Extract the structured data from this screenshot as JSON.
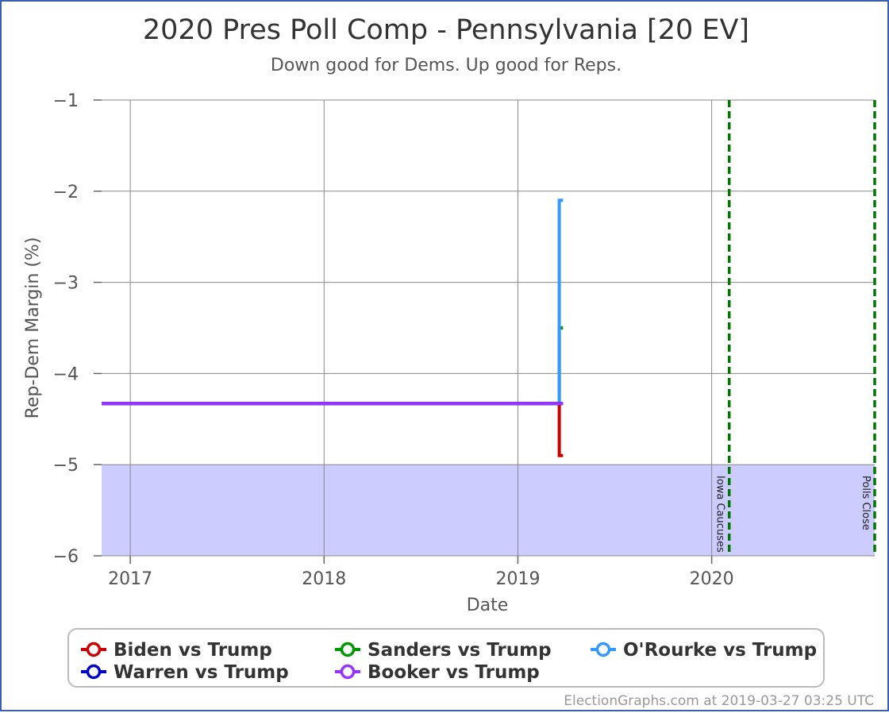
{
  "chart_data": {
    "type": "line",
    "title": "2020 Pres Poll Comp - Pennsylvania [20 EV]",
    "subtitle": "Down good for Dems. Up good for Reps.",
    "xlabel": "Date",
    "ylabel": "Rep-Dem Margin (%)",
    "xlim": [
      "2016-11-08",
      "2020-11-03"
    ],
    "ylim": [
      -6,
      -1
    ],
    "x_ticks": [
      {
        "date": "2017-01-01",
        "label": "2017"
      },
      {
        "date": "2018-01-01",
        "label": "2018"
      },
      {
        "date": "2019-01-01",
        "label": "2019"
      },
      {
        "date": "2020-01-01",
        "label": "2020"
      }
    ],
    "y_ticks": [
      {
        "value": -1,
        "label": "−1"
      },
      {
        "value": -2,
        "label": "−2"
      },
      {
        "value": -3,
        "label": "−3"
      },
      {
        "value": -4,
        "label": "−4"
      },
      {
        "value": -5,
        "label": "−5"
      },
      {
        "value": -6,
        "label": "−6"
      }
    ],
    "grid": true,
    "shaded_band": {
      "y_from": -6,
      "y_to": -5,
      "color": "#ccccff"
    },
    "events": [
      {
        "date": "2020-02-03",
        "label": "Iowa Caucuses",
        "color": "#007700"
      },
      {
        "date": "2020-11-03",
        "label": "Polls Close",
        "color": "#007700"
      }
    ],
    "series": [
      {
        "name": "Biden vs Trump",
        "color": "#cc0000",
        "points": [
          {
            "x": "2016-11-08",
            "y": -4.33
          },
          {
            "x": "2019-03-20",
            "y": -4.33
          },
          {
            "x": "2019-03-20",
            "y": -4.9
          },
          {
            "x": "2019-03-27",
            "y": -4.9
          }
        ]
      },
      {
        "name": "Sanders vs Trump",
        "color": "#009900",
        "points": [
          {
            "x": "2016-11-08",
            "y": -4.33
          },
          {
            "x": "2019-03-20",
            "y": -4.33
          },
          {
            "x": "2019-03-20",
            "y": -3.5
          },
          {
            "x": "2019-03-27",
            "y": -3.5
          }
        ]
      },
      {
        "name": "O'Rourke vs Trump",
        "color": "#3399ff",
        "points": [
          {
            "x": "2016-11-08",
            "y": -4.33
          },
          {
            "x": "2019-03-20",
            "y": -4.33
          },
          {
            "x": "2019-03-20",
            "y": -2.1
          },
          {
            "x": "2019-03-27",
            "y": -2.1
          }
        ]
      },
      {
        "name": "Warren vs Trump",
        "color": "#0000cc",
        "points": [
          {
            "x": "2016-11-08",
            "y": -4.33
          },
          {
            "x": "2019-03-27",
            "y": -4.33
          }
        ]
      },
      {
        "name": "Booker vs Trump",
        "color": "#9933ff",
        "points": [
          {
            "x": "2016-11-08",
            "y": -4.33
          },
          {
            "x": "2019-03-27",
            "y": -4.33
          }
        ]
      }
    ],
    "legend": {
      "placement": "bottom",
      "items": [
        {
          "name": "Biden vs Trump",
          "color": "#cc0000"
        },
        {
          "name": "Sanders vs Trump",
          "color": "#009900"
        },
        {
          "name": "O'Rourke vs Trump",
          "color": "#3399ff"
        },
        {
          "name": "Warren vs Trump",
          "color": "#0000cc"
        },
        {
          "name": "Booker vs Trump",
          "color": "#9933ff"
        }
      ]
    },
    "credit": "ElectionGraphs.com at 2019-03-27 03:25 UTC"
  }
}
